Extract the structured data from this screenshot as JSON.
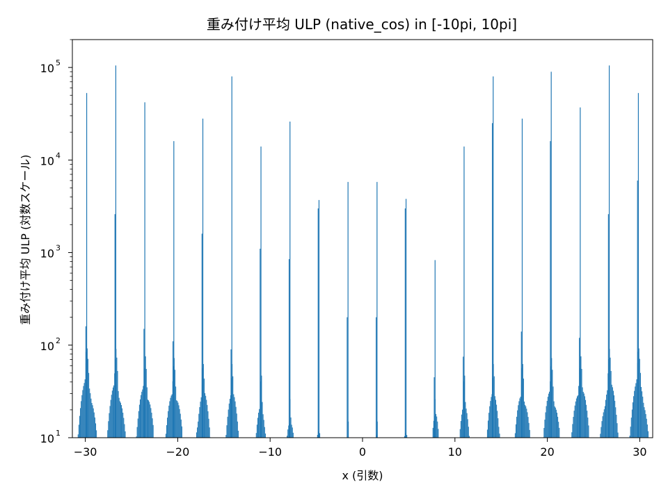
{
  "chart_data": {
    "type": "bar",
    "title": "重み付け平均 ULP (native_cos) in [-10pi, 10pi]",
    "xlabel": "x (引数)",
    "ylabel": "重み付け平均 ULP (対数スケール)",
    "xlim": [
      -31.4,
      31.4
    ],
    "ylim": [
      10,
      200000
    ],
    "yscale": "log",
    "x_ticks": [
      -30,
      -20,
      -10,
      0,
      10,
      20,
      30
    ],
    "x_tick_labels": [
      "−30",
      "−20",
      "−10",
      "0",
      "10",
      "20",
      "30"
    ],
    "y_ticks": [
      {
        "value": 10,
        "base": "10",
        "exp": "1"
      },
      {
        "value": 100,
        "base": "10",
        "exp": "2"
      },
      {
        "value": 1000,
        "base": "10",
        "exp": "3"
      },
      {
        "value": 10000,
        "base": "10",
        "exp": "4"
      },
      {
        "value": 100000,
        "base": "10",
        "exp": "5"
      }
    ],
    "color": "#1f77b4",
    "peaks": [
      {
        "x": -29.85,
        "peak": 53000,
        "second": 160,
        "skirt": 80,
        "base": 38,
        "width": 1.05
      },
      {
        "x": -26.7,
        "peak": 105000,
        "second": 2600,
        "skirt": 75,
        "base": 35,
        "width": 1.0
      },
      {
        "x": -23.56,
        "peak": 42000,
        "second": 150,
        "skirt": 70,
        "base": 33,
        "width": 0.95
      },
      {
        "x": -20.42,
        "peak": 16000,
        "second": 110,
        "skirt": 60,
        "base": 30,
        "width": 0.9
      },
      {
        "x": -17.28,
        "peak": 28000,
        "second": 1600,
        "skirt": 55,
        "base": 28,
        "width": 0.8
      },
      {
        "x": -14.14,
        "peak": 80000,
        "second": 90,
        "skirt": 50,
        "base": 27,
        "width": 0.75
      },
      {
        "x": -10.99,
        "peak": 14000,
        "second": 1100,
        "skirt": 45,
        "base": 20,
        "width": 0.55
      },
      {
        "x": -7.85,
        "peak": 26000,
        "second": 850,
        "skirt": 22,
        "base": 16,
        "width": 0.35
      },
      {
        "x": -4.71,
        "peak": 3700,
        "second": 3000,
        "skirt": 14,
        "base": 12,
        "width": 0.2
      },
      {
        "x": -1.57,
        "peak": 5800,
        "second": 200,
        "skirt": 11,
        "base": 10.5,
        "width": 0.08
      },
      {
        "x": 1.57,
        "peak": 5800,
        "second": 200,
        "skirt": 11,
        "base": 10.5,
        "width": 0.08
      },
      {
        "x": 4.71,
        "peak": 3800,
        "second": 3000,
        "skirt": 14,
        "base": 12,
        "width": 0.2
      },
      {
        "x": 7.85,
        "peak": 830,
        "second": 45,
        "skirt": 22,
        "base": 16,
        "width": 0.35
      },
      {
        "x": 10.99,
        "peak": 14000,
        "second": 75,
        "skirt": 45,
        "base": 20,
        "width": 0.55
      },
      {
        "x": 14.14,
        "peak": 80000,
        "second": 25000,
        "skirt": 50,
        "base": 27,
        "width": 0.75
      },
      {
        "x": 17.28,
        "peak": 28000,
        "second": 140,
        "skirt": 55,
        "base": 28,
        "width": 0.8
      },
      {
        "x": 20.42,
        "peak": 90000,
        "second": 16000,
        "skirt": 60,
        "base": 30,
        "width": 0.9
      },
      {
        "x": 23.56,
        "peak": 37000,
        "second": 120,
        "skirt": 70,
        "base": 33,
        "width": 0.95
      },
      {
        "x": 26.7,
        "peak": 105000,
        "second": 2600,
        "skirt": 75,
        "base": 35,
        "width": 1.0
      },
      {
        "x": 29.85,
        "peak": 53000,
        "second": 6000,
        "skirt": 80,
        "base": 38,
        "width": 1.05
      }
    ]
  }
}
